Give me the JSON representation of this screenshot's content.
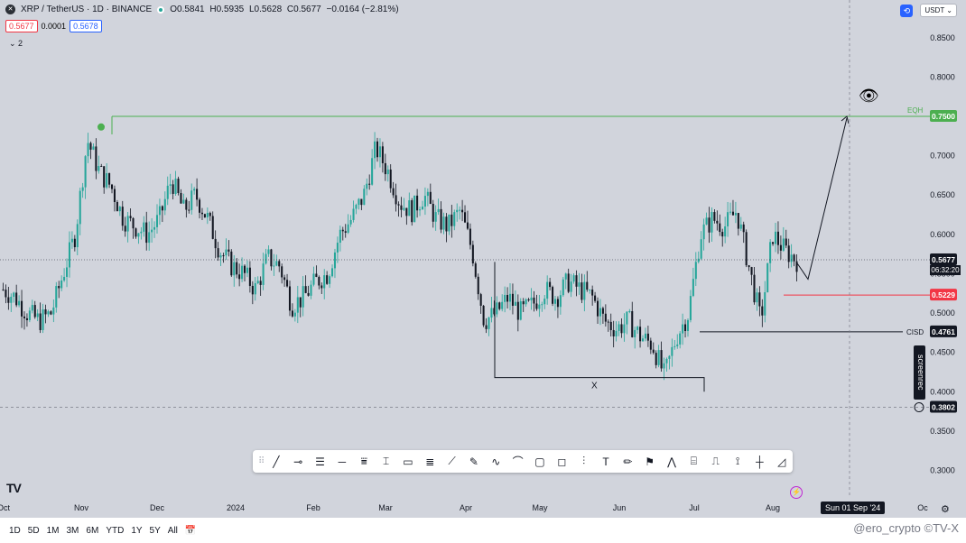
{
  "legend": {
    "symbol": "XRP / TetherUS · 1D · BINANCE",
    "open": "O0.5841",
    "high": "H0.5935",
    "low": "L0.5628",
    "close": "C0.5677",
    "change": "−0.0164 (−2.81%)"
  },
  "price_boxes": {
    "bid": "0.5677",
    "spread": "0.0001",
    "ask": "0.5678"
  },
  "indicators_label": "2",
  "currency": "USDT",
  "timeframes": [
    "1D",
    "5D",
    "1M",
    "3M",
    "6M",
    "YTD",
    "1Y",
    "5Y",
    "All"
  ],
  "watermark": "@ero_crypto  ©TV-X",
  "screenrec_label": "screenrec",
  "time_badge": "Sun 01 Sep '24",
  "annotations": {
    "eqh_label": "EQH",
    "cisd_label": "CISD",
    "x_label": "X"
  },
  "axis_badges": {
    "eqh": "0.7500",
    "last": "0.5677",
    "countdown": "06:32:20",
    "red_line": "0.5229",
    "cisd": "0.4761",
    "crosshair": "0.3802"
  },
  "colors": {
    "bull": "#26a69a",
    "bear": "#131722",
    "eqh_line": "#4caf50",
    "red_line": "#f23645",
    "background": "#d1d4dc"
  },
  "chart_data": {
    "type": "candlestick",
    "symbol": "XRP/USDT",
    "interval": "1D",
    "y_ticks": [
      "0.8500",
      "0.8000",
      "0.7500",
      "0.7000",
      "0.6500",
      "0.6000",
      "0.5500",
      "0.5000",
      "0.4500",
      "0.4000",
      "0.3500",
      "0.3000"
    ],
    "x_ticks": [
      "Oct",
      "Nov",
      "Dec",
      "2024",
      "Feb",
      "Mar",
      "Apr",
      "May",
      "Jun",
      "Jul",
      "Aug",
      "Oc"
    ],
    "ylim": [
      0.265,
      0.875
    ],
    "levels": {
      "eqh": 0.75,
      "last_price": 0.5677,
      "red": 0.5229,
      "cisd": 0.4761,
      "range_low": 0.418,
      "crosshair": 0.3802
    },
    "close_path": [
      0.53,
      0.52,
      0.5,
      0.49,
      0.5,
      0.55,
      0.6,
      0.72,
      0.68,
      0.66,
      0.62,
      0.61,
      0.6,
      0.62,
      0.67,
      0.63,
      0.65,
      0.62,
      0.58,
      0.56,
      0.55,
      0.53,
      0.57,
      0.56,
      0.51,
      0.52,
      0.54,
      0.55,
      0.6,
      0.62,
      0.65,
      0.71,
      0.68,
      0.64,
      0.63,
      0.65,
      0.62,
      0.61,
      0.63,
      0.58,
      0.49,
      0.5,
      0.52,
      0.5,
      0.51,
      0.53,
      0.52,
      0.54,
      0.53,
      0.52,
      0.49,
      0.48,
      0.49,
      0.47,
      0.46,
      0.42,
      0.47,
      0.5,
      0.6,
      0.62,
      0.61,
      0.63,
      0.56,
      0.49,
      0.6,
      0.58,
      0.567
    ]
  }
}
